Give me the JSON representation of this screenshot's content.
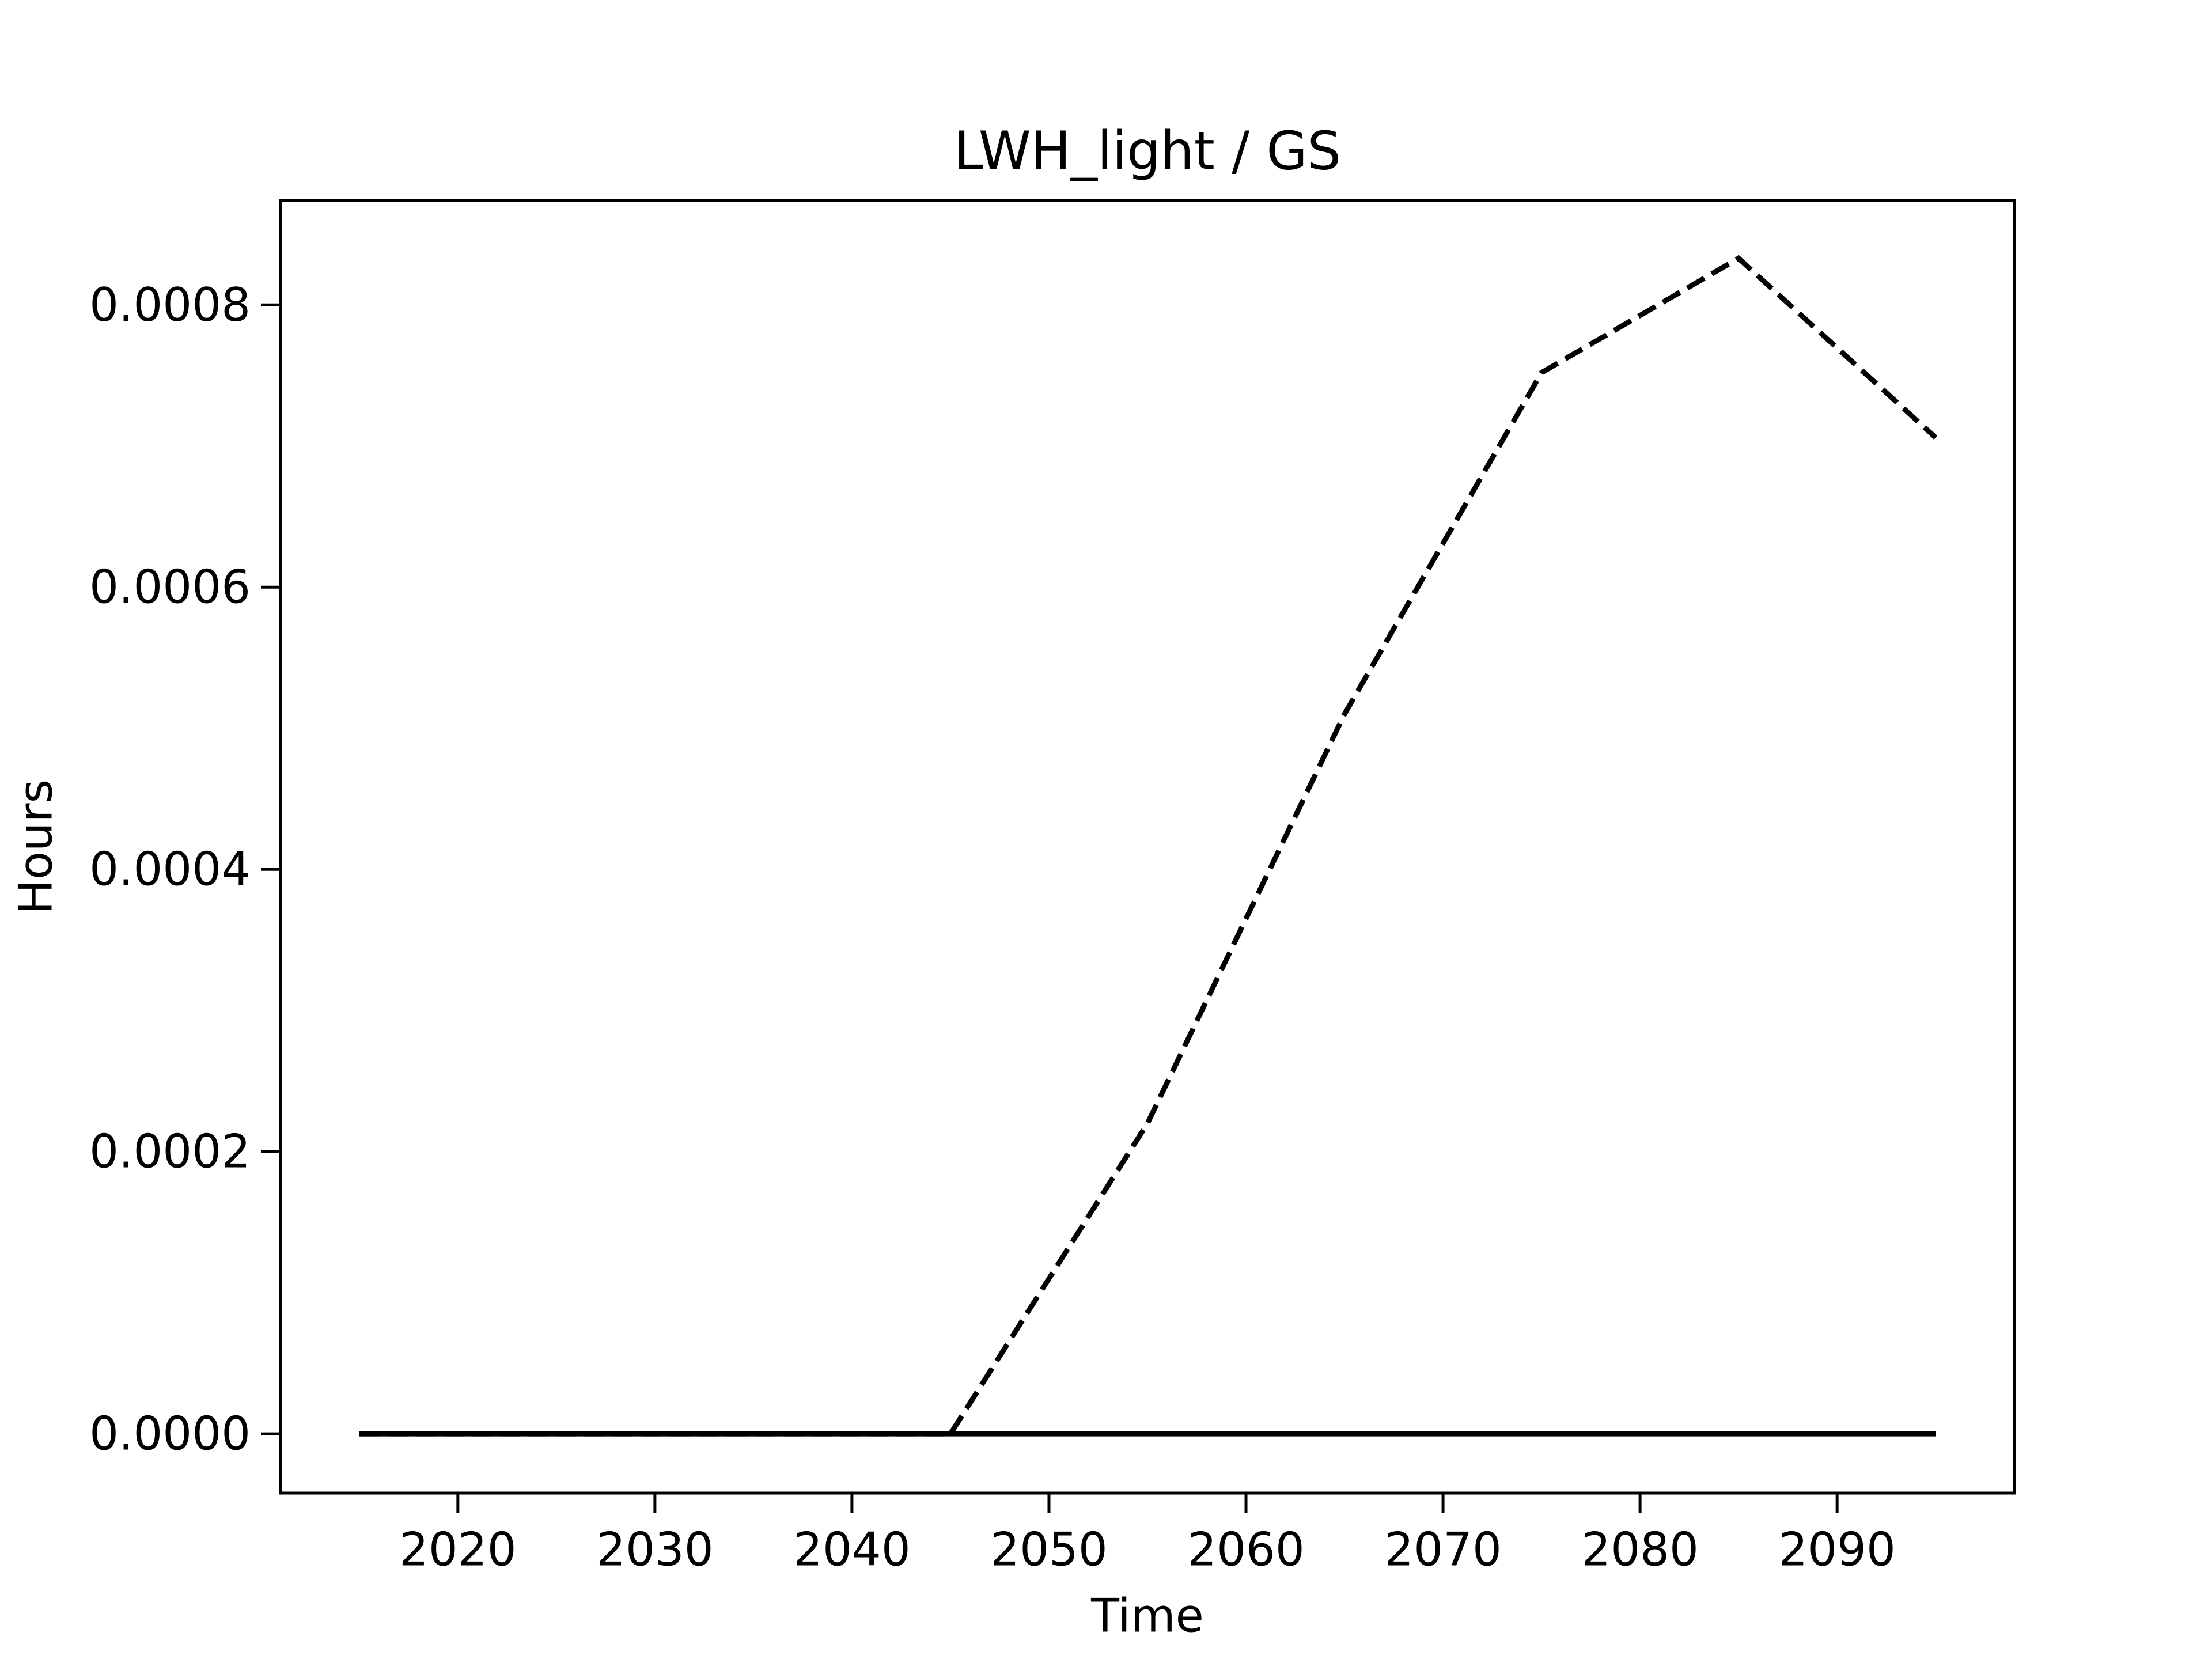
{
  "chart_data": {
    "type": "line",
    "title": "LWH_light / GS",
    "xlabel": "Time",
    "ylabel": "Hours",
    "xlim": [
      2011,
      2099
    ],
    "ylim": [
      -4.2e-05,
      0.000874
    ],
    "x_ticks": [
      2020,
      2030,
      2040,
      2050,
      2060,
      2070,
      2080,
      2090
    ],
    "y_ticks": [
      0.0,
      0.0002,
      0.0004,
      0.0006,
      0.0008
    ],
    "y_tick_labels": [
      "0.0000",
      "0.0002",
      "0.0004",
      "0.0006",
      "0.0008"
    ],
    "grid": false,
    "legend": "none",
    "x": [
      2015,
      2025,
      2035,
      2045,
      2055,
      2065,
      2075,
      2085,
      2095
    ],
    "series": [
      {
        "style": "dashed",
        "color": "#000000",
        "values": [
          0.0,
          0.0,
          0.0,
          0.0,
          0.00022,
          0.00051,
          0.000752,
          0.000833,
          0.000706
        ]
      },
      {
        "style": "solid",
        "color": "#000000",
        "values": [
          0.0,
          0.0,
          0.0,
          0.0,
          0.0,
          0.0,
          0.0,
          0.0,
          0.0
        ]
      }
    ]
  }
}
